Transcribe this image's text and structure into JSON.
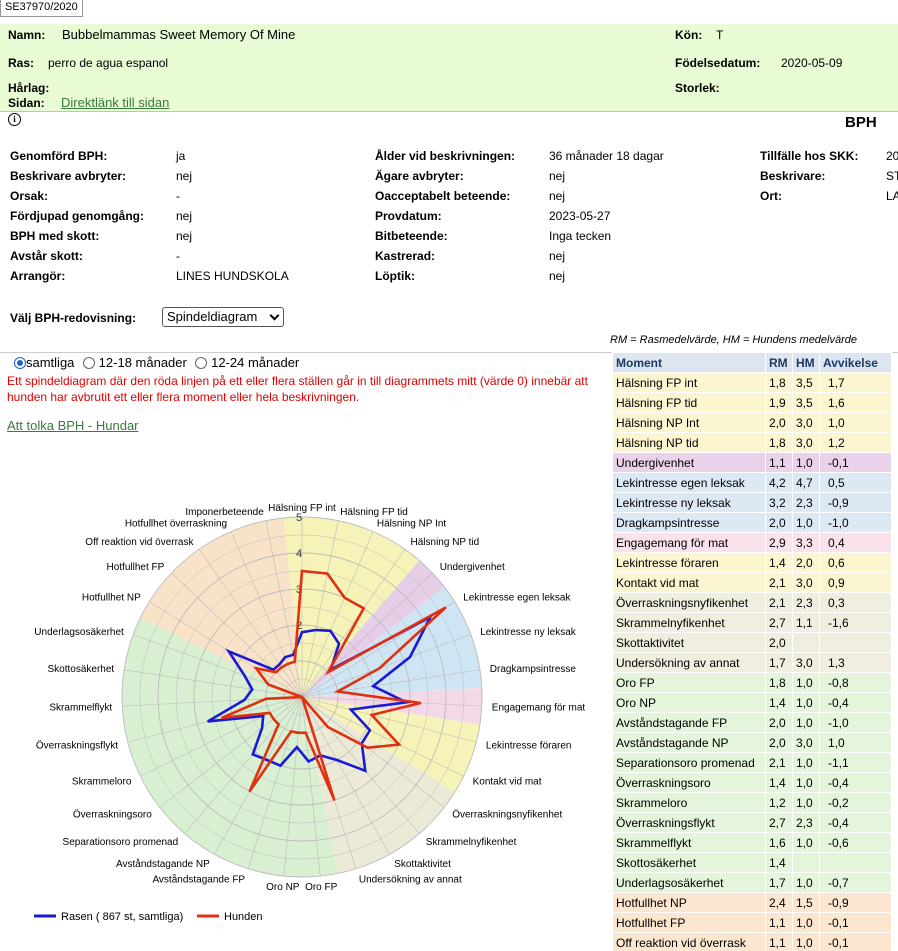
{
  "reg_tab": "SE37970/2020",
  "header": {
    "namn_label": "Namn:",
    "namn": "Bubbelmammas Sweet Memory Of Mine",
    "ras_label": "Ras:",
    "ras": "perro de agua espanol",
    "harlag_label": "Hårlag:",
    "sidan_label": "Sidan:",
    "sidan_link": "Direktlänk till sidan",
    "kon_label": "Kön:",
    "kon": "T",
    "fodelse_label": "Födelsedatum:",
    "fodelse": "2020-05-09",
    "storlek_label": "Storlek:"
  },
  "section_title": "BPH",
  "details": {
    "col1": [
      {
        "k": "Genomförd BPH:",
        "v": "ja"
      },
      {
        "k": "Beskrivare avbryter:",
        "v": "nej"
      },
      {
        "k": "Orsak:",
        "v": "-"
      },
      {
        "k": "Fördjupad genomgång:",
        "v": "nej"
      },
      {
        "k": "BPH med skott:",
        "v": "nej"
      },
      {
        "k": "Avstår skott:",
        "v": "-"
      },
      {
        "k": "Arrangör:",
        "v": "LINES HUNDSKOLA"
      }
    ],
    "col2": [
      {
        "k": "Ålder vid beskrivningen:",
        "v": "36 månader 18 dagar"
      },
      {
        "k": "Ägare avbryter:",
        "v": "nej"
      },
      {
        "k": "Oacceptabelt beteende:",
        "v": "nej"
      },
      {
        "k": "Provdatum:",
        "v": "2023-05-27"
      },
      {
        "k": "Bitbeteende:",
        "v": "Inga tecken"
      },
      {
        "k": "Kastrerad:",
        "v": "nej"
      },
      {
        "k": "Löptik:",
        "v": "nej"
      }
    ],
    "col3": [
      {
        "k": "Tillfälle hos SKK:",
        "v": "20"
      },
      {
        "k": "Beskrivare:",
        "v": "ST"
      },
      {
        "k": "Ort:",
        "v": "LA"
      }
    ]
  },
  "redovisning": {
    "label": "Välj BPH-redovisning:",
    "selected": "Spindeldiagram"
  },
  "abbrev_note": "RM = Rasmedelvärde,     HM = Hundens medelvärde",
  "age_filter": [
    {
      "label": "samtliga",
      "checked": true
    },
    {
      "label": "12-18 månader",
      "checked": false
    },
    {
      "label": "12-24 månader",
      "checked": false
    }
  ],
  "warning": "Ett spindeldiagram där den röda linjen på ett eller flera ställen går in till diagrammets mitt (värde 0) innebär att hunden har avbrutit ett eller flera moment eller hela beskrivningen.",
  "help_link": "Att tolka BPH - Hundar",
  "chart_data": {
    "type": "radar",
    "title": "",
    "rlim": [
      0,
      5
    ],
    "r_ticks": [
      "2",
      "3",
      "4",
      "5"
    ],
    "categories": [
      "Hälsning FP int",
      "Hälsning FP tid",
      "Hälsning NP Int",
      "Hälsning NP tid",
      "Undergivenhet",
      "Lekintresse egen leksak",
      "Lekintresse ny leksak",
      "Dragkampsintresse",
      "Engagemang för mat",
      "Lekintresse föraren",
      "Kontakt vid mat",
      "Överraskningsnyfikenhet",
      "Skrammelnyfikenhet",
      "Skottaktivitet",
      "Undersökning av annat",
      "Oro FP",
      "Oro NP",
      "Avståndstagande FP",
      "Avståndstagande NP",
      "Separationsoro promenad",
      "Överraskningsoro",
      "Skrammeloro",
      "Överraskningsflykt",
      "Skrammelflykt",
      "Skottosäkerhet",
      "Underlagsosäkerhet",
      "Hotfullhet NP",
      "Hotfullhet FP",
      "Off reaktion vid överrask",
      "Hotfullhet överraskning",
      "Imponerbeteende"
    ],
    "group_colors": [
      "#f6f3b8",
      "#f6f3b8",
      "#f6f3b8",
      "#f6f3b8",
      "#e6cde8",
      "#cfe5f3",
      "#cfe5f3",
      "#cfe5f3",
      "#f3d9e8",
      "#f6f3b8",
      "#f6f3b8",
      "#ece9d6",
      "#ece9d6",
      "#ece9d6",
      "#ece9d6",
      "#d8efd2",
      "#d8efd2",
      "#d8efd2",
      "#d8efd2",
      "#d8efd2",
      "#d8efd2",
      "#d8efd2",
      "#d8efd2",
      "#d8efd2",
      "#d8efd2",
      "#d8efd2",
      "#f8e3c8",
      "#f8e3c8",
      "#f8e3c8",
      "#f8e3c8",
      "#f8e3c8"
    ],
    "series": [
      {
        "name": "Rasen ( 867 st, samtliga)",
        "color": "#1a1ad6",
        "values": [
          1.8,
          1.9,
          2.0,
          1.8,
          1.1,
          4.2,
          3.2,
          2.0,
          2.9,
          1.4,
          2.1,
          2.1,
          2.7,
          2.0,
          1.7,
          1.8,
          1.4,
          2.0,
          2.0,
          2.1,
          1.4,
          1.2,
          2.7,
          1.6,
          1.4,
          1.7,
          2.4,
          1.1,
          1.1,
          1.2,
          1.2
        ]
      },
      {
        "name": "Hunden",
        "color": "#e03010",
        "values": [
          3.5,
          3.5,
          3.0,
          3.0,
          1.0,
          4.7,
          2.3,
          1.0,
          3.3,
          2.0,
          3.0,
          2.3,
          1.1,
          0,
          3.0,
          1.0,
          1.0,
          1.0,
          3.0,
          1.0,
          1.0,
          1.0,
          2.3,
          1.0,
          0,
          1.0,
          1.5,
          1.0,
          1.0,
          1.0,
          1.0
        ]
      }
    ]
  },
  "table": {
    "headers": [
      "Moment",
      "RM",
      "HM",
      "Avvikelse"
    ],
    "rows": [
      {
        "m": "Hälsning FP int",
        "rm": "1,8",
        "hm": "3,5",
        "av": "1,7",
        "bg": "#fbf6d0"
      },
      {
        "m": "Hälsning FP tid",
        "rm": "1,9",
        "hm": "3,5",
        "av": "1,6",
        "bg": "#fbf6d0"
      },
      {
        "m": "Hälsning NP Int",
        "rm": "2,0",
        "hm": "3,0",
        "av": "1,0",
        "bg": "#fbf6d0"
      },
      {
        "m": "Hälsning NP tid",
        "rm": "1,8",
        "hm": "3,0",
        "av": "1,2",
        "bg": "#fbf6d0"
      },
      {
        "m": "Undergivenhet",
        "rm": "1,1",
        "hm": "1,0",
        "av": "-0,1",
        "bg": "#ead3ea"
      },
      {
        "m": "Lekintresse egen leksak",
        "rm": "4,2",
        "hm": "4,7",
        "av": "0,5",
        "bg": "#dce9f5"
      },
      {
        "m": "Lekintresse ny leksak",
        "rm": "3,2",
        "hm": "2,3",
        "av": "-0,9",
        "bg": "#dce9f5"
      },
      {
        "m": "Dragkampsintresse",
        "rm": "2,0",
        "hm": "1,0",
        "av": "-1,0",
        "bg": "#dce9f5"
      },
      {
        "m": "Engagemang för mat",
        "rm": "2,9",
        "hm": "3,3",
        "av": "0,4",
        "bg": "#f9e2ec"
      },
      {
        "m": "Lekintresse föraren",
        "rm": "1,4",
        "hm": "2,0",
        "av": "0,6",
        "bg": "#fbf6d0"
      },
      {
        "m": "Kontakt vid mat",
        "rm": "2,1",
        "hm": "3,0",
        "av": "0,9",
        "bg": "#fbf6d0"
      },
      {
        "m": "Överraskningsnyfikenhet",
        "rm": "2,1",
        "hm": "2,3",
        "av": "0,3",
        "bg": "#f0eedf"
      },
      {
        "m": "Skrammelnyfikenhet",
        "rm": "2,7",
        "hm": "1,1",
        "av": "-1,6",
        "bg": "#f0eedf"
      },
      {
        "m": "Skottaktivitet",
        "rm": "2,0",
        "hm": "",
        "av": "",
        "bg": "#f0eedf"
      },
      {
        "m": "Undersökning av annat",
        "rm": "1,7",
        "hm": "3,0",
        "av": "1,3",
        "bg": "#f0eedf"
      },
      {
        "m": "Oro FP",
        "rm": "1,8",
        "hm": "1,0",
        "av": "-0,8",
        "bg": "#e4f5dc"
      },
      {
        "m": "Oro NP",
        "rm": "1,4",
        "hm": "1,0",
        "av": "-0,4",
        "bg": "#e4f5dc"
      },
      {
        "m": "Avståndstagande FP",
        "rm": "2,0",
        "hm": "1,0",
        "av": "-1,0",
        "bg": "#e4f5dc"
      },
      {
        "m": "Avståndstagande NP",
        "rm": "2,0",
        "hm": "3,0",
        "av": "1,0",
        "bg": "#e4f5dc"
      },
      {
        "m": "Separationsoro promenad",
        "rm": "2,1",
        "hm": "1,0",
        "av": "-1,1",
        "bg": "#e4f5dc"
      },
      {
        "m": "Överraskningsoro",
        "rm": "1,4",
        "hm": "1,0",
        "av": "-0,4",
        "bg": "#e4f5dc"
      },
      {
        "m": "Skrammeloro",
        "rm": "1,2",
        "hm": "1,0",
        "av": "-0,2",
        "bg": "#e4f5dc"
      },
      {
        "m": "Överraskningsflykt",
        "rm": "2,7",
        "hm": "2,3",
        "av": "-0,4",
        "bg": "#e4f5dc"
      },
      {
        "m": "Skrammelflykt",
        "rm": "1,6",
        "hm": "1,0",
        "av": "-0,6",
        "bg": "#e4f5dc"
      },
      {
        "m": "Skottosäkerhet",
        "rm": "1,4",
        "hm": "",
        "av": "",
        "bg": "#e4f5dc"
      },
      {
        "m": "Underlagsosäkerhet",
        "rm": "1,7",
        "hm": "1,0",
        "av": "-0,7",
        "bg": "#e4f5dc"
      },
      {
        "m": "Hotfullhet NP",
        "rm": "2,4",
        "hm": "1,5",
        "av": "-0,9",
        "bg": "#fbe6cf"
      },
      {
        "m": "Hotfullhet FP",
        "rm": "1,1",
        "hm": "1,0",
        "av": "-0,1",
        "bg": "#fbe6cf"
      },
      {
        "m": "Off reaktion vid överrask",
        "rm": "1,1",
        "hm": "1,0",
        "av": "-0,1",
        "bg": "#fbe6cf"
      }
    ]
  }
}
